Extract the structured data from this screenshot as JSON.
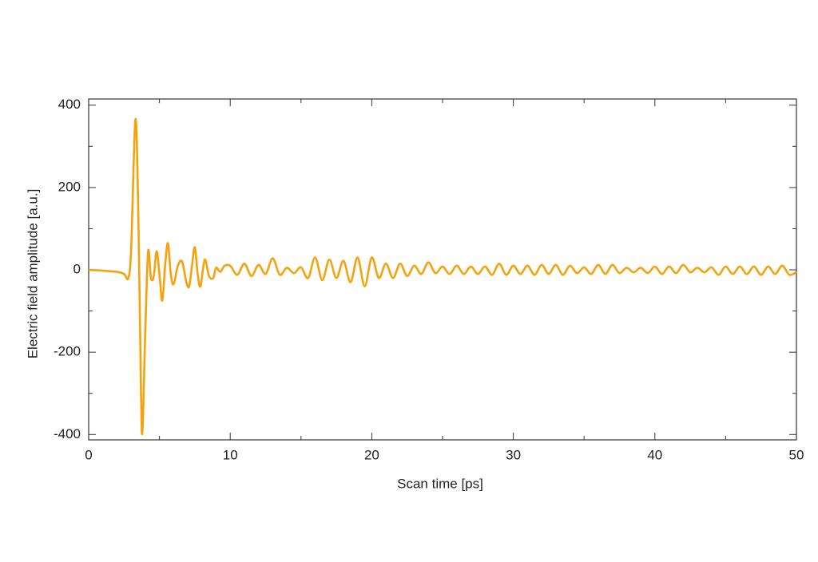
{
  "chart_data": {
    "type": "line",
    "xlabel": "Scan time [ps]",
    "ylabel": "Electric field amplitude [a.u.]",
    "xlim": [
      0,
      50
    ],
    "ylim": [
      -413,
      415
    ],
    "xticks": [
      0,
      10,
      20,
      30,
      40,
      50
    ],
    "yticks": [
      -400,
      -200,
      0,
      200,
      400
    ],
    "x_minor_ticks": [
      5,
      15,
      25,
      35,
      45
    ],
    "y_minor_ticks": [
      -300,
      -100,
      100,
      300
    ],
    "series": [
      {
        "color": "#f5a20c",
        "x": [
          0,
          1,
          2,
          2.5,
          2.8,
          3.0,
          3.3,
          3.5,
          3.7,
          3.8,
          4.0,
          4.2,
          4.4,
          4.6,
          4.8,
          5.0,
          5.2,
          5.4,
          5.6,
          5.8,
          6.0,
          6.3,
          6.6,
          6.9,
          7.1,
          7.3,
          7.5,
          7.7,
          7.9,
          8.2,
          8.5,
          8.8,
          9.0,
          9.3,
          9.6,
          10,
          10.5,
          11,
          11.5,
          12,
          12.5,
          13,
          13.5,
          14,
          14.5,
          15,
          15.5,
          16,
          16.5,
          17,
          17.5,
          18,
          18.5,
          19,
          19.5,
          20,
          20.5,
          21,
          21.5,
          22,
          22.5,
          23,
          23.5,
          24,
          24.5,
          25,
          25.5,
          26,
          26.5,
          27,
          27.5,
          28,
          28.5,
          29,
          29.5,
          30,
          30.5,
          31,
          31.5,
          32,
          32.5,
          33,
          33.5,
          34,
          34.5,
          35,
          35.5,
          36,
          36.5,
          37,
          37.5,
          38,
          38.5,
          39,
          39.5,
          40,
          40.5,
          41,
          41.5,
          42,
          42.5,
          43,
          43.5,
          44,
          44.5,
          45,
          45.5,
          46,
          46.5,
          47,
          47.5,
          48,
          48.5,
          49,
          49.5,
          50
        ],
        "values": [
          0,
          -2,
          -5,
          -10,
          -20,
          50,
          365,
          150,
          -300,
          -390,
          -150,
          45,
          -20,
          -15,
          45,
          -10,
          -75,
          10,
          65,
          -10,
          -35,
          10,
          20,
          -30,
          -40,
          10,
          55,
          -10,
          -40,
          25,
          -15,
          -20,
          5,
          -5,
          10,
          10,
          -12,
          15,
          -15,
          12,
          -10,
          28,
          -12,
          5,
          -8,
          6,
          -20,
          30,
          -25,
          25,
          -20,
          22,
          -30,
          30,
          -40,
          30,
          -20,
          15,
          -20,
          15,
          -15,
          10,
          -10,
          18,
          -8,
          8,
          -10,
          10,
          -10,
          8,
          -10,
          8,
          -12,
          15,
          -12,
          10,
          -10,
          10,
          -12,
          12,
          -10,
          12,
          -12,
          10,
          -8,
          6,
          -10,
          12,
          -10,
          12,
          -8,
          5,
          -6,
          5,
          -8,
          8,
          -10,
          8,
          -8,
          12,
          -6,
          5,
          -6,
          6,
          -12,
          8,
          -10,
          8,
          -10,
          8,
          -12,
          8,
          -10,
          10,
          -12,
          -5
        ]
      }
    ]
  }
}
